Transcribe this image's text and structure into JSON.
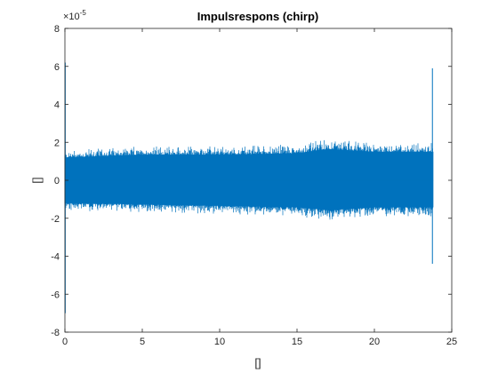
{
  "chart_data": {
    "type": "line",
    "title": "Impulsrespons (chirp)",
    "xlabel": "[]",
    "ylabel": "[]",
    "xlim": [
      0,
      25
    ],
    "ylim": [
      -8,
      8
    ],
    "y_scale_exponent": "× 10⁻⁵",
    "y_exponent_base": "×10",
    "y_exponent_power": "-5",
    "x_ticks": [
      0,
      5,
      10,
      15,
      20,
      25
    ],
    "x_tick_labels": [
      "0",
      "5",
      "10",
      "15",
      "20",
      "25"
    ],
    "y_ticks": [
      -8,
      -6,
      -4,
      -2,
      0,
      2,
      4,
      6,
      8
    ],
    "y_tick_labels": [
      "-8",
      "-6",
      "-4",
      "-2",
      "0",
      "2",
      "4",
      "6",
      "8"
    ],
    "grid": false,
    "series": [
      {
        "color": "#0072BD",
        "x_end": 23.8,
        "noise_envelope": [
          {
            "x": 0.0,
            "min": -1.6,
            "max": 1.6
          },
          {
            "x": 5.0,
            "min": -1.7,
            "max": 1.8
          },
          {
            "x": 10.0,
            "min": -1.8,
            "max": 1.8
          },
          {
            "x": 15.0,
            "min": -1.9,
            "max": 1.9
          },
          {
            "x": 17.0,
            "min": -2.1,
            "max": 2.2
          },
          {
            "x": 20.0,
            "min": -1.9,
            "max": 2.0
          },
          {
            "x": 23.8,
            "min": -1.9,
            "max": 2.0
          }
        ],
        "spikes": [
          {
            "x": 0.02,
            "min": -7.0,
            "max": 6.2
          },
          {
            "x": 23.75,
            "min": -4.4,
            "max": 5.9
          }
        ]
      }
    ]
  }
}
